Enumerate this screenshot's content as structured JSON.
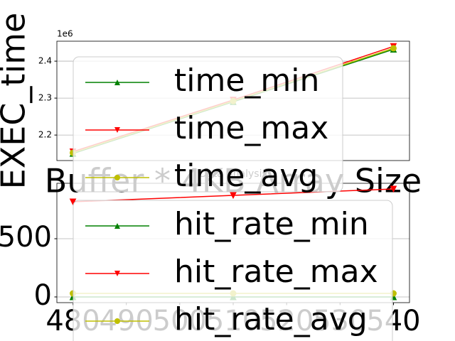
{
  "chart_data": [
    {
      "type": "line",
      "y_offset_label": "1e6",
      "ylabel": "EXEC_time",
      "xlabel": "Buffer * 4KB Array Size",
      "x": [
        480,
        510,
        540
      ],
      "series": [
        {
          "name": "time_min",
          "color": "#008000",
          "marker": "^",
          "values": [
            2150000,
            2290000,
            2432000
          ]
        },
        {
          "name": "time_max",
          "color": "#ff0000",
          "marker": "v",
          "values": [
            2155000,
            2295000,
            2440000
          ]
        },
        {
          "name": "time_avg",
          "color": "#bfbf00",
          "marker": "o",
          "values": [
            2152000,
            2292000,
            2435000
          ]
        }
      ],
      "xlim": [
        477,
        543
      ],
      "ylim": [
        2131000,
        2454000
      ],
      "yticks": [
        {
          "value": 2200000,
          "label": "2.2"
        },
        {
          "value": 2300000,
          "label": "2.3"
        },
        {
          "value": 2400000,
          "label": "2.4"
        }
      ],
      "grid": true,
      "legend": "upper left"
    },
    {
      "type": "line",
      "title": "Data Analysis",
      "x": [
        480,
        510,
        540
      ],
      "series": [
        {
          "name": "hit_rate_min",
          "color": "#008000",
          "marker": "^",
          "values": [
            0,
            0,
            0
          ]
        },
        {
          "name": "hit_rate_max",
          "color": "#ff0000",
          "marker": "v",
          "values": [
            817,
            872,
            927
          ]
        },
        {
          "name": "hit_rate_avg",
          "color": "#bfbf00",
          "marker": "o",
          "values": [
            30,
            30,
            30
          ]
        }
      ],
      "xlim": [
        477,
        543
      ],
      "ylim": [
        -49,
        976
      ],
      "xticks": [
        480,
        490,
        500,
        510,
        520,
        530,
        540
      ],
      "yticks": [
        0,
        500
      ],
      "grid": true,
      "legend": "upper left"
    }
  ]
}
